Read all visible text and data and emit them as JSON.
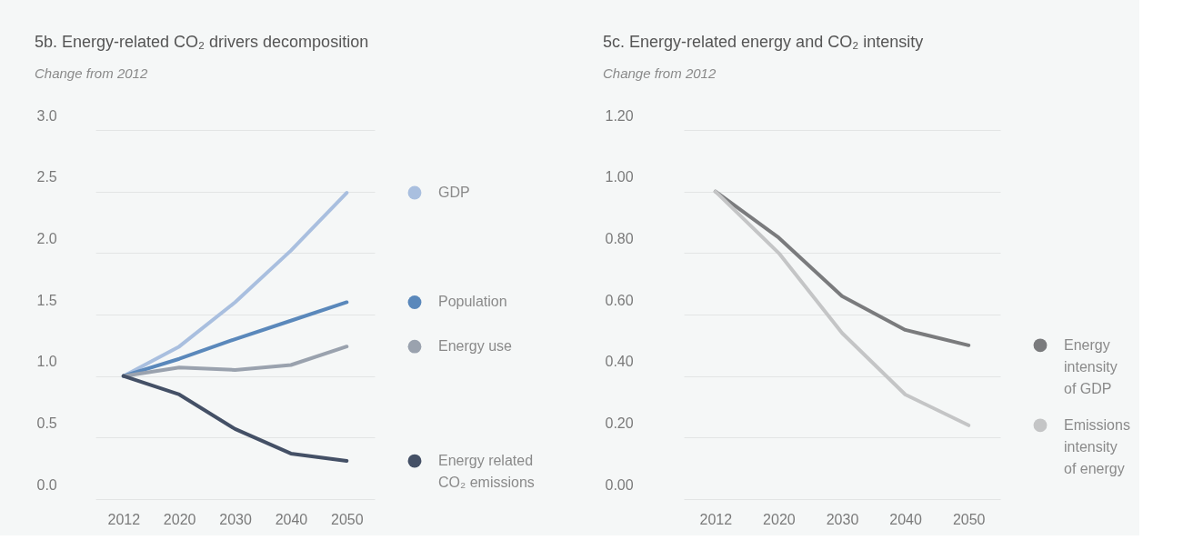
{
  "chart_data": [
    {
      "type": "line",
      "title": "5b. Energy-related CO₂ drivers decomposition",
      "subtitle": "Change from 2012",
      "categories": [
        "2012",
        "2020",
        "2030",
        "2040",
        "2050"
      ],
      "series": [
        {
          "name": "GDP",
          "color": "#a9bfdf",
          "values": [
            1.0,
            1.24,
            1.6,
            2.02,
            2.49
          ]
        },
        {
          "name": "Population",
          "color": "#5a88bb",
          "values": [
            1.0,
            1.14,
            1.3,
            1.45,
            1.6
          ]
        },
        {
          "name": "Energy use",
          "color": "#9aa2ae",
          "values": [
            1.0,
            1.07,
            1.05,
            1.09,
            1.24
          ]
        },
        {
          "name": "Energy related\nCO₂ emissions",
          "color": "#445066",
          "values": [
            1.0,
            0.85,
            0.57,
            0.37,
            0.31
          ]
        }
      ],
      "ylim": [
        0,
        3.0
      ],
      "yticks": [
        {
          "value": 0,
          "label": "0.0"
        },
        {
          "value": 0.5,
          "label": "0.5"
        },
        {
          "value": 1,
          "label": "1.0"
        },
        {
          "value": 1.5,
          "label": "1.5"
        },
        {
          "value": 2,
          "label": "2.0"
        },
        {
          "value": 2.5,
          "label": "2.5"
        },
        {
          "value": 3,
          "label": "3.0"
        }
      ],
      "grid": "y",
      "legend": "right",
      "marker": "none",
      "line_style": "solid"
    },
    {
      "type": "line",
      "title": "5c. Energy-related energy and CO₂ intensity",
      "subtitle": "Change from 2012",
      "categories": [
        "2012",
        "2020",
        "2030",
        "2040",
        "2050"
      ],
      "series": [
        {
          "name": "Energy\nintensity\nof GDP",
          "color": "#7a7b7d",
          "values": [
            1.0,
            0.85,
            0.66,
            0.55,
            0.5
          ]
        },
        {
          "name": "Emissions\nintensity\nof energy",
          "color": "#c4c5c6",
          "values": [
            1.0,
            0.8,
            0.54,
            0.34,
            0.24
          ]
        }
      ],
      "ylim": [
        0,
        1.2
      ],
      "yticks": [
        {
          "value": 0,
          "label": "0.00"
        },
        {
          "value": 0.2,
          "label": "0.20"
        },
        {
          "value": 0.4,
          "label": "0.40"
        },
        {
          "value": 0.6,
          "label": "0.60"
        },
        {
          "value": 0.8,
          "label": "0.80"
        },
        {
          "value": 1,
          "label": "1.00"
        },
        {
          "value": 1.2,
          "label": "1.20"
        }
      ],
      "grid": "y",
      "legend": "right",
      "marker": "none",
      "line_style": "solid"
    }
  ]
}
